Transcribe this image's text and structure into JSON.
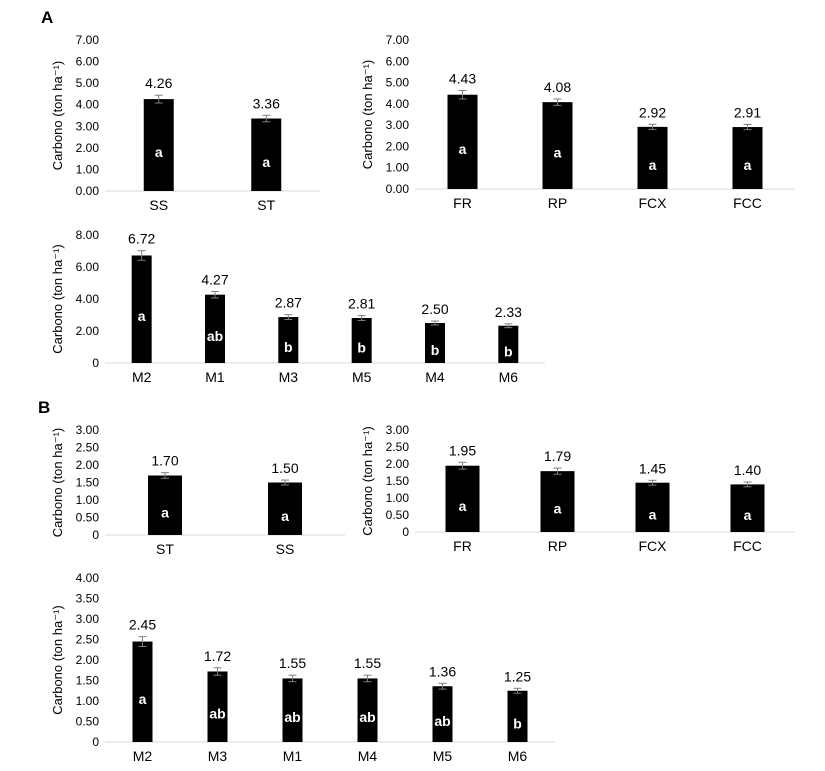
{
  "panels": [
    {
      "label": "A"
    },
    {
      "label": "B"
    }
  ],
  "colors": {
    "bar": "#000000",
    "axis": "#d9d9d9",
    "errorbar": "#7f7f7f",
    "significance_text": "#ffffff"
  },
  "chart_data": [
    {
      "type": "bar",
      "panel": "A",
      "ylabel": "Carbono (ton ha⁻¹)",
      "ylim": [
        0,
        7
      ],
      "yticks": [
        "0.00",
        "1.00",
        "2.00",
        "3.00",
        "4.00",
        "5.00",
        "6.00",
        "7.00"
      ],
      "categories": [
        "SS",
        "ST"
      ],
      "values": [
        4.26,
        3.36
      ],
      "value_labels": [
        "4.26",
        "3.36"
      ],
      "significance": [
        "a",
        "a"
      ],
      "error": [
        0.18,
        0.15
      ]
    },
    {
      "type": "bar",
      "panel": "A",
      "ylabel": "Carbono (ton ha⁻¹)",
      "ylim": [
        0,
        7
      ],
      "yticks": [
        "0.00",
        "1.00",
        "2.00",
        "3.00",
        "4.00",
        "5.00",
        "6.00",
        "7.00"
      ],
      "categories": [
        "FR",
        "RP",
        "FCX",
        "FCC"
      ],
      "values": [
        4.43,
        4.08,
        2.92,
        2.91
      ],
      "value_labels": [
        "4.43",
        "4.08",
        "2.92",
        "2.91"
      ],
      "significance": [
        "a",
        "a",
        "a",
        "a"
      ],
      "error": [
        0.2,
        0.15,
        0.12,
        0.12
      ]
    },
    {
      "type": "bar",
      "panel": "A",
      "ylabel": "Carbono (ton ha⁻¹)",
      "ylim": [
        0,
        8
      ],
      "yticks": [
        "0",
        "2.00",
        "4.00",
        "6.00",
        "8.00"
      ],
      "categories": [
        "M2",
        "M1",
        "M3",
        "M5",
        "M4",
        "M6"
      ],
      "values": [
        6.72,
        4.27,
        2.87,
        2.81,
        2.5,
        2.33
      ],
      "value_labels": [
        "6.72",
        "4.27",
        "2.87",
        "2.81",
        "2.50",
        "2.33"
      ],
      "significance": [
        "a",
        "ab",
        "b",
        "b",
        "b",
        "b"
      ],
      "error": [
        0.3,
        0.2,
        0.15,
        0.15,
        0.12,
        0.12
      ]
    },
    {
      "type": "bar",
      "panel": "B",
      "ylabel": "Carbono (ton ha⁻¹)",
      "ylim": [
        0,
        3
      ],
      "yticks": [
        "0",
        "0.50",
        "1.00",
        "1.50",
        "2.00",
        "2.50",
        "3.00"
      ],
      "categories": [
        "ST",
        "SS"
      ],
      "values": [
        1.7,
        1.5
      ],
      "value_labels": [
        "1.70",
        "1.50"
      ],
      "significance": [
        "a",
        "a"
      ],
      "error": [
        0.08,
        0.07
      ]
    },
    {
      "type": "bar",
      "panel": "B",
      "ylabel": "Carbono (ton ha⁻¹)",
      "ylim": [
        0,
        3
      ],
      "yticks": [
        "0",
        "0.50",
        "1.00",
        "1.50",
        "2.00",
        "2.50",
        "3.00"
      ],
      "categories": [
        "FR",
        "RP",
        "FCX",
        "FCC"
      ],
      "values": [
        1.95,
        1.79,
        1.45,
        1.4
      ],
      "value_labels": [
        "1.95",
        "1.79",
        "1.45",
        "1.40"
      ],
      "significance": [
        "a",
        "a",
        "a",
        "a"
      ],
      "error": [
        0.1,
        0.09,
        0.07,
        0.07
      ]
    },
    {
      "type": "bar",
      "panel": "B",
      "ylabel": "Carbono (ton ha⁻¹)",
      "ylim": [
        0,
        4
      ],
      "yticks": [
        "0",
        "0.50",
        "1.00",
        "1.50",
        "2.00",
        "2.50",
        "3.00",
        "3.50",
        "4.00"
      ],
      "categories": [
        "M2",
        "M3",
        "M1",
        "M4",
        "M5",
        "M6"
      ],
      "values": [
        2.45,
        1.72,
        1.55,
        1.55,
        1.36,
        1.25
      ],
      "value_labels": [
        "2.45",
        "1.72",
        "1.55",
        "1.55",
        "1.36",
        "1.25"
      ],
      "significance": [
        "a",
        "ab",
        "ab",
        "ab",
        "ab",
        "b"
      ],
      "error": [
        0.12,
        0.09,
        0.08,
        0.08,
        0.07,
        0.06
      ]
    }
  ]
}
